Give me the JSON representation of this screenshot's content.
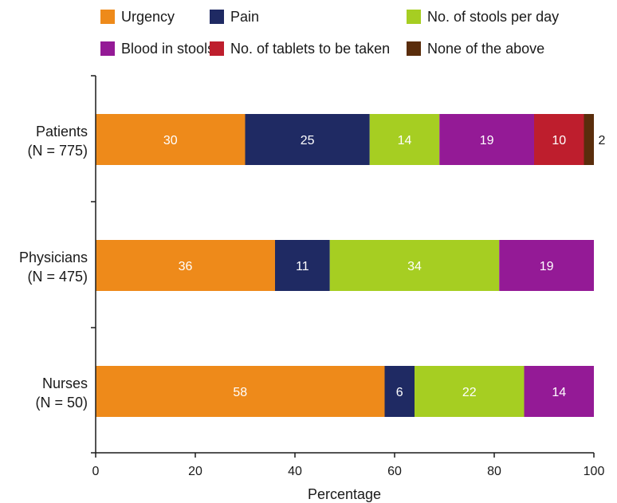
{
  "chart_data": {
    "type": "bar",
    "orientation": "horizontal",
    "stacked": true,
    "categories": [
      [
        "Patients",
        "(N = 775)"
      ],
      [
        "Physicians",
        "(N = 475)"
      ],
      [
        "Nurses",
        "(N = 50)"
      ]
    ],
    "series": [
      {
        "name": "Urgency",
        "color": "#EE8A1A",
        "values": [
          30,
          36,
          58
        ]
      },
      {
        "name": "Pain",
        "color": "#1F2A63",
        "values": [
          25,
          11,
          6
        ]
      },
      {
        "name": "No. of stools per day",
        "color": "#A6CE22",
        "values": [
          14,
          34,
          22
        ]
      },
      {
        "name": "Blood in stools",
        "color": "#941A96",
        "values": [
          19,
          19,
          14
        ]
      },
      {
        "name": "No. of tablets to be taken",
        "color": "#BE1E2D",
        "values": [
          10,
          0,
          0
        ]
      },
      {
        "name": "None of the above",
        "color": "#5A2D0C",
        "values": [
          2,
          0,
          0
        ]
      }
    ],
    "xlabel": "Percentage",
    "ylabel": "",
    "xlim": [
      0,
      100
    ],
    "xticks": [
      0,
      20,
      40,
      60,
      80,
      100
    ],
    "grid": false,
    "legend_position": "top"
  }
}
